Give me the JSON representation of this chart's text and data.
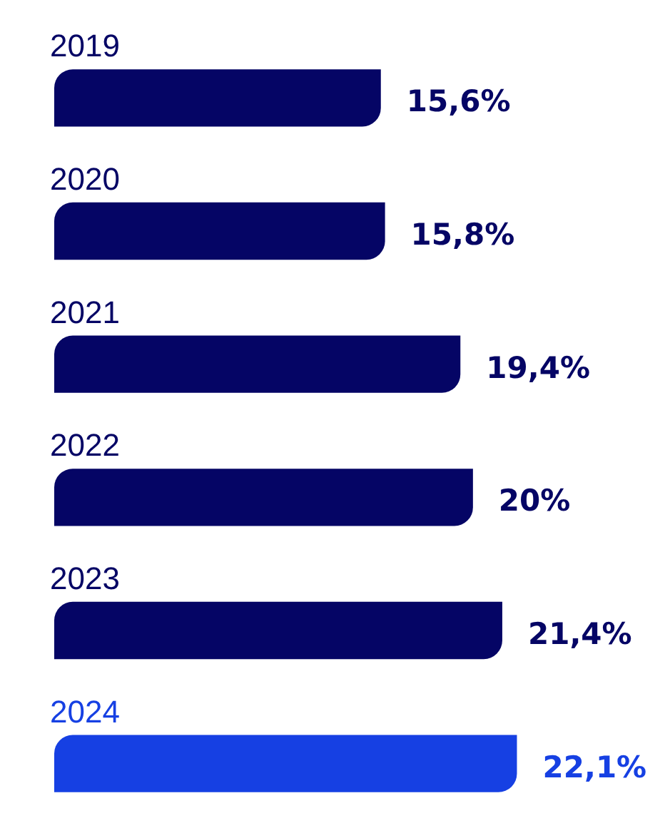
{
  "chart_data": {
    "type": "bar",
    "orientation": "horizontal",
    "categories": [
      "2019",
      "2020",
      "2021",
      "2022",
      "2023",
      "2024"
    ],
    "values": [
      15.6,
      15.8,
      19.4,
      20,
      21.4,
      22.1
    ],
    "value_labels": [
      "15,6%",
      "15,8%",
      "19,4%",
      "20%",
      "21,4%",
      "22,1%"
    ],
    "colors": [
      "#050565",
      "#050565",
      "#050565",
      "#050565",
      "#050565",
      "#1640e3"
    ],
    "legend": false
  }
}
